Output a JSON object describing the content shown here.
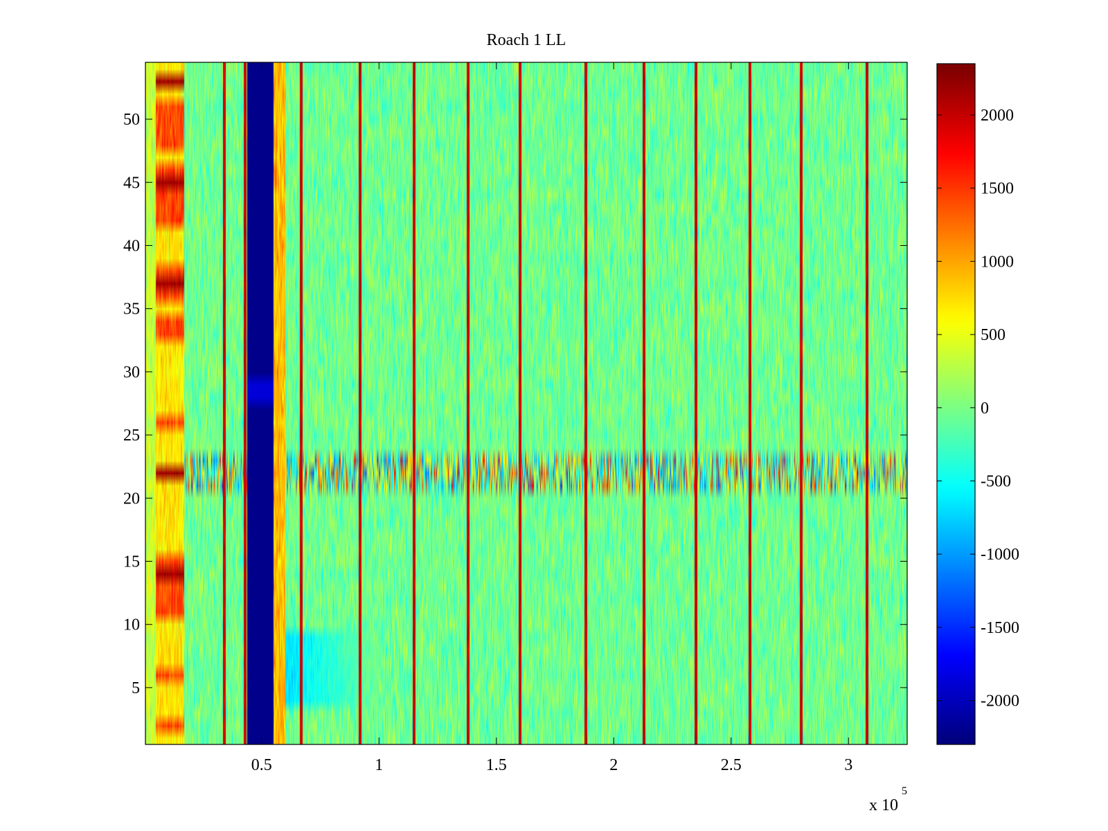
{
  "chart_data": {
    "type": "heatmap",
    "title": "Roach 1 LL",
    "xlabel": "",
    "ylabel": "",
    "x_exponent_label": "x 10",
    "x_exponent_power": "5",
    "xlim": [
      0.005,
      3.25
    ],
    "ylim": [
      0.5,
      54.5
    ],
    "rows": 54,
    "x_ticks": [
      {
        "value": 0.5,
        "label": "0.5"
      },
      {
        "value": 1,
        "label": "1"
      },
      {
        "value": 1.5,
        "label": "1.5"
      },
      {
        "value": 2,
        "label": "2"
      },
      {
        "value": 2.5,
        "label": "2.5"
      },
      {
        "value": 3,
        "label": "3"
      }
    ],
    "y_ticks": [
      {
        "value": 5,
        "label": "5"
      },
      {
        "value": 10,
        "label": "10"
      },
      {
        "value": 15,
        "label": "15"
      },
      {
        "value": 20,
        "label": "20"
      },
      {
        "value": 25,
        "label": "25"
      },
      {
        "value": 30,
        "label": "30"
      },
      {
        "value": 35,
        "label": "35"
      },
      {
        "value": 40,
        "label": "40"
      },
      {
        "value": 45,
        "label": "45"
      },
      {
        "value": 50,
        "label": "50"
      }
    ],
    "colorbar": {
      "colormap": "jet",
      "clim": [
        -2300,
        2350
      ],
      "ticks": [
        {
          "value": 2000,
          "label": "2000"
        },
        {
          "value": 1500,
          "label": "1500"
        },
        {
          "value": 1000,
          "label": "1000"
        },
        {
          "value": 500,
          "label": "500"
        },
        {
          "value": 0,
          "label": "0"
        },
        {
          "value": -500,
          "label": "-500"
        },
        {
          "value": -1000,
          "label": "-1000"
        },
        {
          "value": -1500,
          "label": "-1500"
        },
        {
          "value": -2000,
          "label": "-2000"
        }
      ]
    },
    "baseline_value": -50,
    "features": {
      "vertical_lines_x": [
        0.34,
        0.43,
        0.67,
        0.92,
        1.15,
        1.38,
        1.6,
        1.88,
        2.13,
        2.35,
        2.58,
        2.8,
        3.08
      ],
      "vertical_line_value": 2000,
      "low_band": {
        "x_range": [
          0.44,
          0.55
        ],
        "value": -2250
      },
      "low_band_patch": {
        "x_range": [
          0.44,
          0.55
        ],
        "y_range": [
          27.5,
          29.5
        ],
        "value": -1900
      },
      "high_columns": {
        "x_range": [
          0.05,
          0.17
        ],
        "value": 1400
      },
      "high_rows_in_columns": [
        2,
        6,
        11,
        12,
        13,
        14,
        15,
        22,
        26,
        33,
        34,
        36,
        37,
        38,
        42,
        43,
        44,
        45,
        46,
        48,
        49,
        50,
        51,
        53
      ],
      "hot_rows_in_columns": [
        14,
        22,
        37,
        45,
        53
      ],
      "mixed_rows": [
        21,
        22,
        23
      ],
      "cool_region": {
        "x_range": [
          0.58,
          1.0
        ],
        "y_range": [
          3.5,
          9.5
        ],
        "value": -700
      }
    },
    "colors": {
      "axis": "#000000",
      "background": "#ffffff"
    }
  }
}
